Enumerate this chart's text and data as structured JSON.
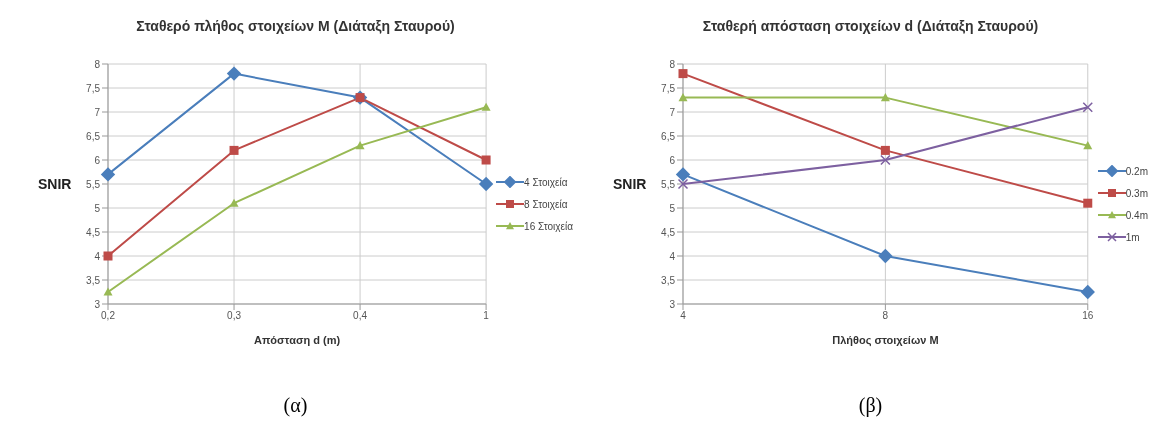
{
  "chart_data": [
    {
      "type": "line",
      "title": "Σταθερό πλήθος στοιχείων M (Διάταξη Σταυρού)",
      "xlabel": "Απόσταση d (m)",
      "ylabel": "SNIR",
      "categories": [
        "0,2",
        "0,3",
        "0,4",
        "1"
      ],
      "series": [
        {
          "name": "4 Στοιχεία",
          "color": "#4a7ebb",
          "marker": "diamond",
          "values": [
            5.7,
            7.8,
            7.3,
            5.5
          ]
        },
        {
          "name": "8 Στοιχεία",
          "color": "#be4b48",
          "marker": "square",
          "values": [
            4.0,
            6.2,
            7.3,
            6.0
          ]
        },
        {
          "name": "16 Στοιχεία",
          "color": "#98b954",
          "marker": "triangle",
          "values": [
            3.25,
            5.1,
            6.3,
            7.1
          ]
        }
      ],
      "ylim": [
        3,
        8
      ],
      "yticks": [
        3,
        {
          "value": 3.5,
          "label": "3,5"
        },
        4,
        {
          "value": 4.5,
          "label": "4,5"
        },
        5,
        {
          "value": 5.5,
          "label": "5,5"
        },
        6,
        {
          "value": 6.5,
          "label": "6,5"
        },
        7,
        {
          "value": 7.5,
          "label": "7,5"
        },
        8
      ],
      "grid": true,
      "legend": "right",
      "annotations": [
        "(α)"
      ]
    },
    {
      "type": "line",
      "title": "Σταθερή απόσταση στοιχείων d (Διάταξη Σταυρού)",
      "xlabel": "Πλήθος στοιχείων M",
      "ylabel": "SNIR",
      "categories": [
        "4",
        "8",
        "16"
      ],
      "series": [
        {
          "name": "0.2m",
          "color": "#4a7ebb",
          "marker": "diamond",
          "values": [
            5.7,
            4.0,
            3.25
          ]
        },
        {
          "name": "0.3m",
          "color": "#be4b48",
          "marker": "square",
          "values": [
            7.8,
            6.2,
            5.1
          ]
        },
        {
          "name": "0.4m",
          "color": "#98b954",
          "marker": "triangle",
          "values": [
            7.3,
            7.3,
            6.3
          ]
        },
        {
          "name": "1m",
          "color": "#7d60a0",
          "marker": "cross",
          "values": [
            5.5,
            6.0,
            7.1
          ]
        }
      ],
      "ylim": [
        3,
        8
      ],
      "yticks": [
        3,
        {
          "value": 3.5,
          "label": "3,5"
        },
        4,
        {
          "value": 4.5,
          "label": "4,5"
        },
        5,
        {
          "value": 5.5,
          "label": "5,5"
        },
        6,
        {
          "value": 6.5,
          "label": "6,5"
        },
        7,
        {
          "value": 7.5,
          "label": "7,5"
        },
        8
      ],
      "grid": true,
      "legend": "right",
      "annotations": [
        "(β)"
      ]
    }
  ]
}
